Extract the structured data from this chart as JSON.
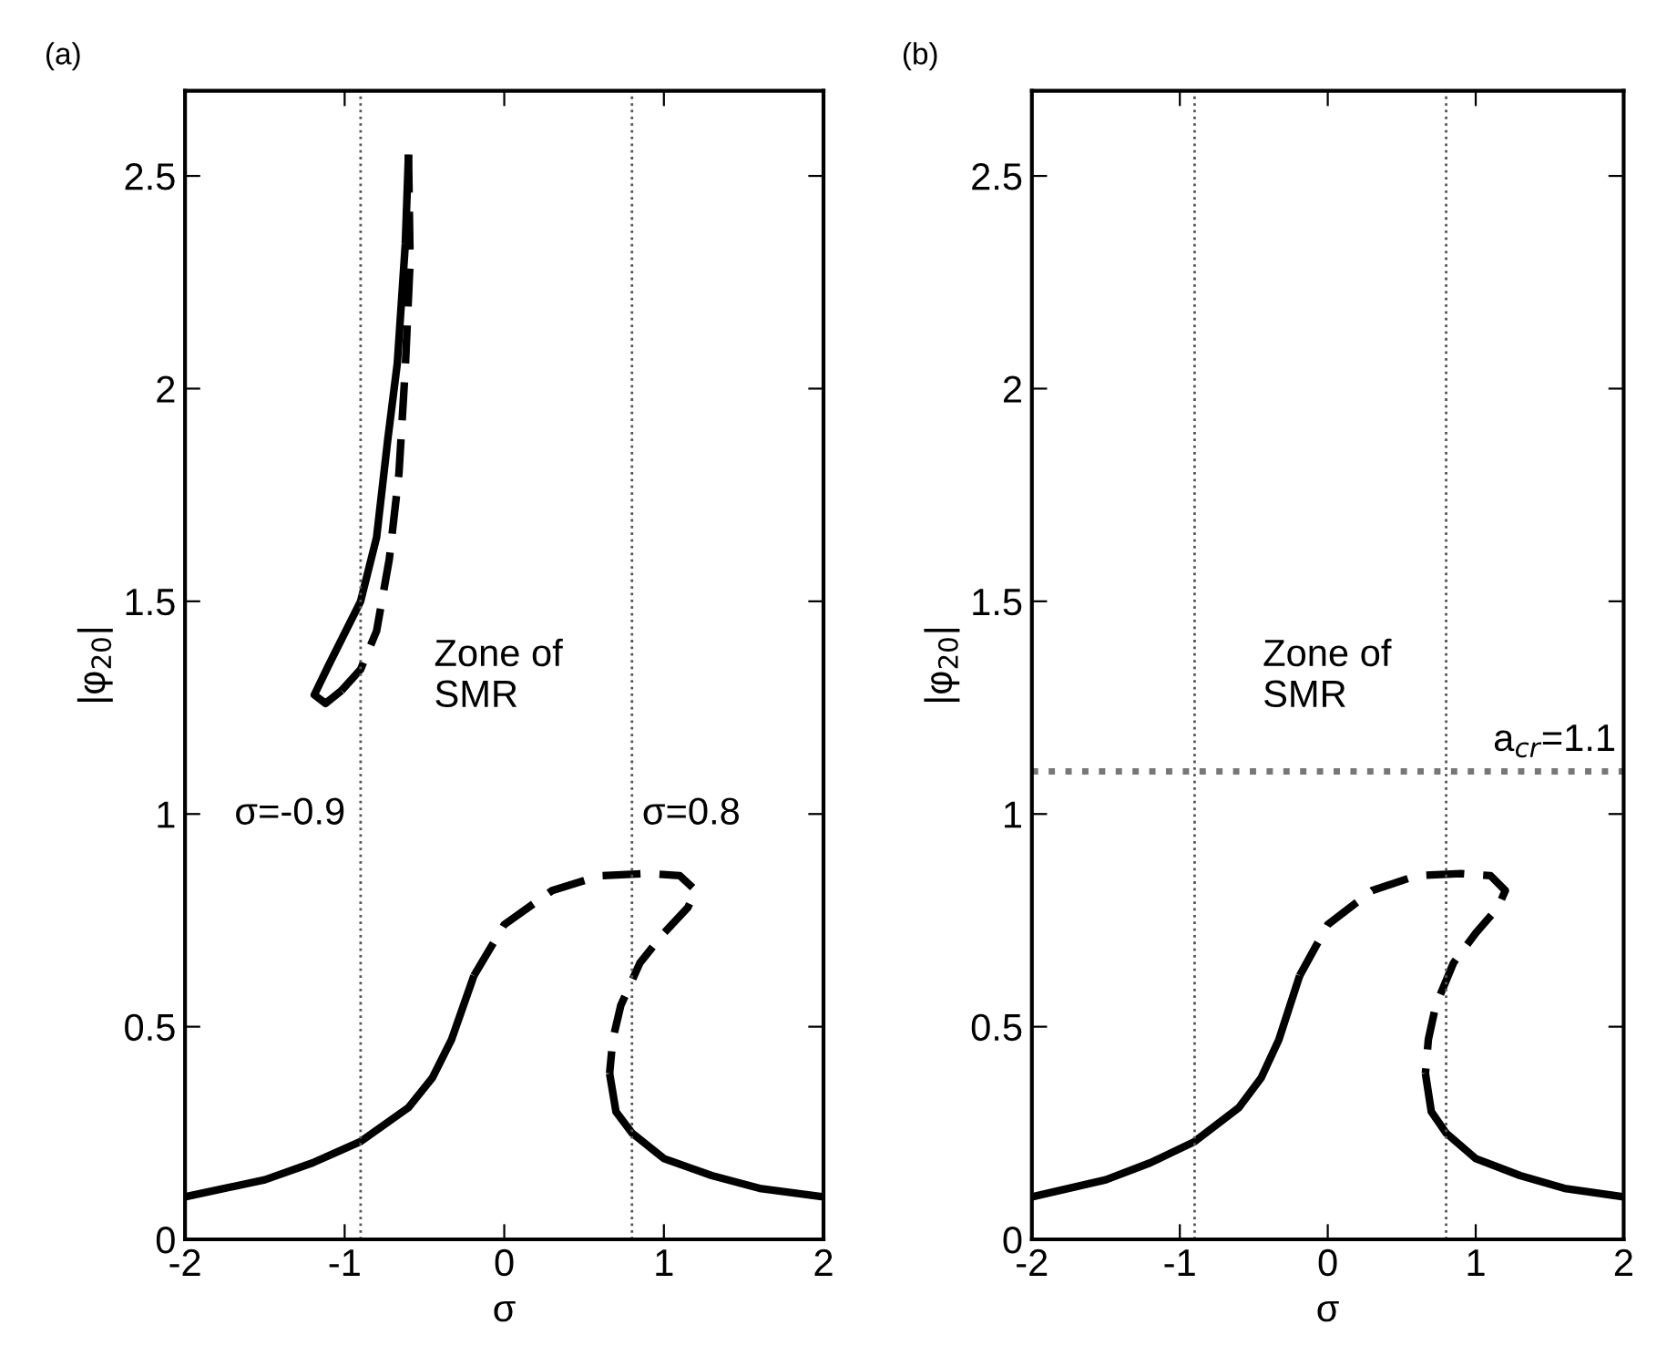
{
  "chart_data": [
    {
      "type": "line",
      "title": "(a)",
      "xlabel": "σ",
      "ylabel": "|φ$_{20}$|",
      "xlim": [
        -2,
        2
      ],
      "ylim": [
        0,
        2.7
      ],
      "xticks": [
        -2,
        -1,
        0,
        1,
        2
      ],
      "yticks": [
        0,
        0.5,
        1,
        1.5,
        2,
        2.5
      ],
      "grid": false,
      "legend": false,
      "annotations": [
        "Zone of\nSMR"
      ],
      "ref_lines": [
        {
          "axis": "x",
          "value": -0.9,
          "label": "σ=-0.9",
          "color": "#555555",
          "line_style": "dotted"
        },
        {
          "axis": "x",
          "value": 0.8,
          "label": "σ=0.8",
          "color": "#555555",
          "line_style": "dotted"
        }
      ],
      "series": [
        {
          "color": "#000000",
          "line_style": "solid",
          "x": [
            -2,
            -1.5,
            -1.2,
            -0.9,
            -0.6,
            -0.45,
            -0.33,
            -0.19
          ],
          "values": [
            0.1,
            0.14,
            0.18,
            0.23,
            0.31,
            0.38,
            0.47,
            0.62
          ]
        },
        {
          "color": "#000000",
          "line_style": "dashed",
          "x": [
            -0.19,
            0,
            0.3,
            0.6,
            0.9,
            1.1,
            1.2,
            1.15,
            1.0,
            0.85,
            0.73,
            0.68,
            0.66
          ],
          "values": [
            0.62,
            0.74,
            0.82,
            0.855,
            0.86,
            0.855,
            0.82,
            0.78,
            0.72,
            0.65,
            0.55,
            0.47,
            0.39
          ]
        },
        {
          "color": "#000000",
          "line_style": "solid",
          "x": [
            0.66,
            0.7,
            0.8,
            1.0,
            1.3,
            1.6,
            2
          ],
          "values": [
            0.39,
            0.3,
            0.25,
            0.19,
            0.15,
            0.12,
            0.1
          ]
        },
        {
          "color": "#000000",
          "line_style": "solid",
          "x": [
            -1.02,
            -1.12,
            -1.19,
            -1.1,
            -0.9,
            -0.8,
            -0.73,
            -0.67,
            -0.62,
            -0.6
          ],
          "values": [
            1.29,
            1.26,
            1.28,
            1.35,
            1.5,
            1.65,
            1.88,
            2.06,
            2.34,
            2.55
          ]
        },
        {
          "color": "#000000",
          "line_style": "dashed",
          "x": [
            -0.6,
            -0.59,
            -0.62,
            -0.66,
            -0.72,
            -0.8,
            -0.9,
            -1.02
          ],
          "values": [
            2.55,
            2.3,
            2.05,
            1.8,
            1.6,
            1.43,
            1.34,
            1.29
          ]
        }
      ]
    },
    {
      "type": "line",
      "title": "(b)",
      "xlabel": "σ",
      "ylabel": "|φ$_{20}$|",
      "xlim": [
        -2,
        2
      ],
      "ylim": [
        0,
        2.7
      ],
      "xticks": [
        -2,
        -1,
        0,
        1,
        2
      ],
      "yticks": [
        0,
        0.5,
        1,
        1.5,
        2,
        2.5
      ],
      "grid": false,
      "legend": false,
      "annotations": [
        "Zone of\nSMR"
      ],
      "ref_lines": [
        {
          "axis": "x",
          "value": -0.9,
          "color": "#555555",
          "line_style": "dotted"
        },
        {
          "axis": "x",
          "value": 0.8,
          "color": "#555555",
          "line_style": "dotted"
        },
        {
          "axis": "y",
          "value": 1.1,
          "label": "a$_{cr}$=1.1",
          "color": "#777777",
          "line_style": "dotted"
        }
      ],
      "series": [
        {
          "color": "#000000",
          "line_style": "solid",
          "x": [
            -2,
            -1.5,
            -1.2,
            -0.9,
            -0.6,
            -0.45,
            -0.33,
            -0.19
          ],
          "values": [
            0.1,
            0.14,
            0.18,
            0.23,
            0.31,
            0.38,
            0.47,
            0.62
          ]
        },
        {
          "color": "#000000",
          "line_style": "dashed",
          "x": [
            -0.19,
            0,
            0.3,
            0.6,
            0.9,
            1.1,
            1.2,
            1.15,
            1.0,
            0.85,
            0.73,
            0.68,
            0.66
          ],
          "values": [
            0.62,
            0.74,
            0.82,
            0.855,
            0.86,
            0.855,
            0.82,
            0.78,
            0.72,
            0.65,
            0.55,
            0.47,
            0.39
          ]
        },
        {
          "color": "#000000",
          "line_style": "solid",
          "x": [
            0.66,
            0.7,
            0.8,
            1.0,
            1.3,
            1.6,
            2
          ],
          "values": [
            0.39,
            0.3,
            0.25,
            0.19,
            0.15,
            0.12,
            0.1
          ]
        }
      ]
    }
  ]
}
